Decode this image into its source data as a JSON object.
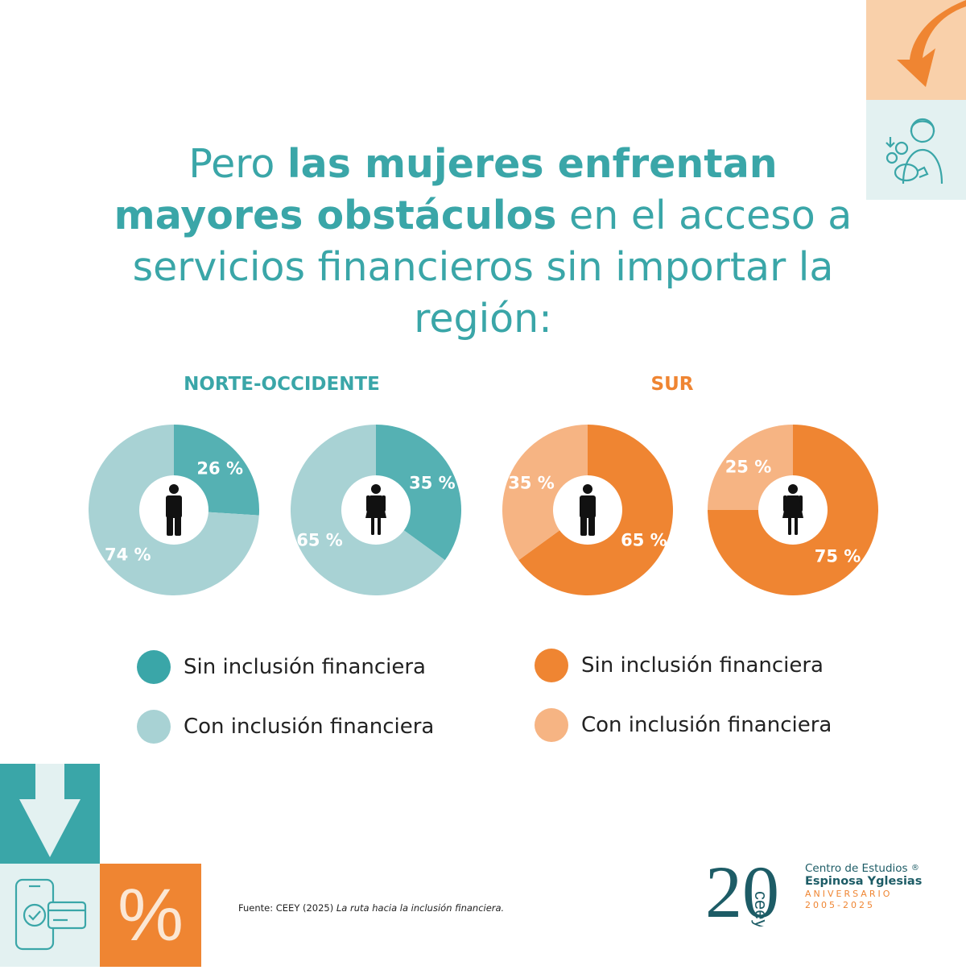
{
  "title": {
    "part1": "Pero ",
    "bold1": "las mujeres enfrentan mayores obstáculos",
    "part2": " en el acceso a servicios financieros sin importar la región:"
  },
  "chart_data": [
    {
      "type": "pie",
      "region": "NORTE-OCCIDENTE",
      "icon": "man-icon",
      "series": [
        {
          "name": "Sin inclusión financiera",
          "value": 26,
          "label": "26 %",
          "color": "#55b1b3"
        },
        {
          "name": "Con inclusión financiera",
          "value": 74,
          "label": "74 %",
          "color": "#a8d2d4"
        }
      ]
    },
    {
      "type": "pie",
      "region": "NORTE-OCCIDENTE",
      "icon": "woman-icon",
      "series": [
        {
          "name": "Sin inclusión financiera",
          "value": 35,
          "label": "35 %",
          "color": "#55b1b3"
        },
        {
          "name": "Con inclusión financiera",
          "value": 65,
          "label": "65 %",
          "color": "#a8d2d4"
        }
      ]
    },
    {
      "type": "pie",
      "region": "SUR",
      "icon": "man-icon",
      "series": [
        {
          "name": "Sin inclusión financiera",
          "value": 65,
          "label": "65 %",
          "color": "#ef8532"
        },
        {
          "name": "Con inclusión financiera",
          "value": 35,
          "label": "35 %",
          "color": "#f6b483"
        }
      ]
    },
    {
      "type": "pie",
      "region": "SUR",
      "icon": "woman-icon",
      "series": [
        {
          "name": "Sin inclusión financiera",
          "value": 75,
          "label": "75 %",
          "color": "#ef8532"
        },
        {
          "name": "Con inclusión financiera",
          "value": 25,
          "label": "25 %",
          "color": "#f6b483"
        }
      ]
    }
  ],
  "regions": {
    "left": "NORTE-OCCIDENTE",
    "right": "SUR"
  },
  "legend": {
    "left": [
      {
        "label": "Sin inclusión financiera",
        "color": "#3aa6a8"
      },
      {
        "label": "Con inclusión financiera",
        "color": "#a8d2d4"
      }
    ],
    "right": [
      {
        "label": "Sin inclusión financiera",
        "color": "#ef8532"
      },
      {
        "label": "Con inclusión financiera",
        "color": "#f6b483"
      }
    ]
  },
  "source": {
    "prefix": "Fuente: CEEY (2025) ",
    "title": "La ruta hacia la inclusión financiera."
  },
  "logo": {
    "number": "20",
    "monogram": "ceey",
    "line1": "Centro de Estudios",
    "reg": "®",
    "line2": "Espinosa Yglesias",
    "anniv": "ANIVERSARIO",
    "years": "2005-2025"
  },
  "deco": {
    "percent_symbol": "%"
  }
}
